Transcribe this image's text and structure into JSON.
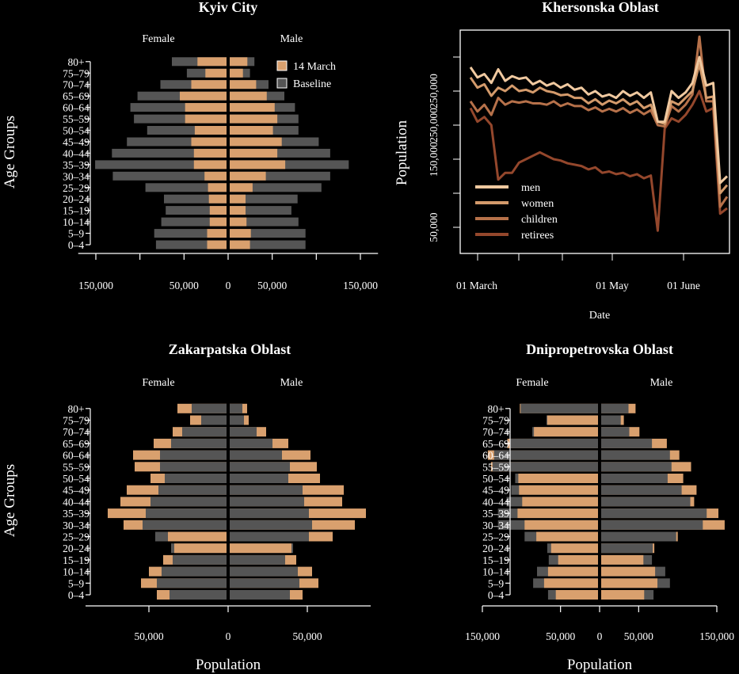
{
  "colors": {
    "background": "#000000",
    "baseline": "#555555",
    "march14": "#d9a06e",
    "text": "#ffffff"
  },
  "chart_data": [
    {
      "type": "bar",
      "subtype": "population-pyramid",
      "title": "Kyiv City",
      "ylabel": "Age Groups",
      "xlabel": "",
      "left_label": "Female",
      "right_label": "Male",
      "legend": {
        "position": "top-right",
        "items": [
          "14 March",
          "Baseline"
        ]
      },
      "x_ticks": [
        150000,
        50000,
        0,
        50000,
        150000
      ],
      "x_tick_labels": [
        "150,000",
        "50,000",
        "0",
        "50,000",
        "150,000"
      ],
      "xlim": [
        -150000,
        150000
      ],
      "categories": [
        "0–4",
        "5–9",
        "10–14",
        "15–19",
        "20–24",
        "25–29",
        "30–34",
        "35–39",
        "40–44",
        "45–49",
        "50–54",
        "55–59",
        "60–64",
        "65–69",
        "70–74",
        "75–79",
        "80+"
      ],
      "series": [
        {
          "name": "Baseline",
          "female": [
            80000,
            82000,
            74000,
            69000,
            71000,
            92000,
            129000,
            149000,
            130000,
            113000,
            90000,
            105000,
            109000,
            101000,
            75000,
            45000,
            62000
          ],
          "male": [
            86000,
            86000,
            78000,
            70000,
            77000,
            104000,
            114000,
            135000,
            114000,
            101000,
            78000,
            78000,
            74000,
            62000,
            44000,
            23000,
            28000
          ]
        },
        {
          "name": "14 March",
          "female": [
            22000,
            22000,
            19000,
            19000,
            20000,
            21000,
            25000,
            37000,
            37000,
            40000,
            36000,
            47000,
            47000,
            53000,
            40000,
            24000,
            33000
          ],
          "male": [
            23000,
            24000,
            19000,
            18000,
            18000,
            26000,
            41000,
            63000,
            54000,
            59000,
            49000,
            54000,
            51000,
            42000,
            30000,
            15000,
            20000
          ]
        }
      ]
    },
    {
      "type": "line",
      "title": "Khersonska Oblast",
      "xlabel": "Date",
      "ylabel": "Population",
      "x_tick_labels": [
        "01 March",
        "01 May",
        "01 June"
      ],
      "y_tick_labels": [
        "50,000",
        "150,000",
        "250,000",
        "250,000"
      ],
      "legend": {
        "position": "bottom-left",
        "items": [
          "men",
          "women",
          "children",
          "retirees"
        ]
      },
      "series_colors": [
        "#f0c9a0",
        "#d39a6b",
        "#b6714a",
        "#94472c"
      ],
      "day_offsets": [
        0,
        3,
        6,
        9,
        12,
        15,
        18,
        21,
        24,
        27,
        30,
        33,
        36,
        39,
        42,
        45,
        48,
        51,
        54,
        57,
        60,
        63,
        66,
        69,
        72,
        75,
        78,
        81,
        84,
        87,
        90,
        93,
        96,
        99,
        102,
        105,
        108,
        111
      ],
      "series": [
        {
          "name": "men",
          "values": [
            285000,
            270000,
            275000,
            262000,
            282000,
            265000,
            272000,
            268000,
            270000,
            260000,
            265000,
            258000,
            262000,
            255000,
            260000,
            252000,
            255000,
            245000,
            250000,
            242000,
            245000,
            240000,
            250000,
            243000,
            248000,
            240000,
            248000,
            205000,
            205000,
            250000,
            240000,
            248000,
            262000,
            300000,
            258000,
            262000,
            115000,
            125000
          ]
        },
        {
          "name": "women",
          "values": [
            270000,
            255000,
            260000,
            243000,
            255000,
            250000,
            258000,
            250000,
            252000,
            248000,
            255000,
            250000,
            248000,
            244000,
            245000,
            240000,
            240000,
            232000,
            238000,
            230000,
            236000,
            232000,
            238000,
            230000,
            235000,
            225000,
            230000,
            205000,
            202000,
            235000,
            230000,
            240000,
            250000,
            290000,
            240000,
            242000,
            100000,
            112000
          ]
        },
        {
          "name": "children",
          "values": [
            235000,
            220000,
            230000,
            215000,
            240000,
            230000,
            235000,
            233000,
            235000,
            232000,
            232000,
            230000,
            235000,
            228000,
            232000,
            228000,
            228000,
            222000,
            226000,
            220000,
            224000,
            220000,
            225000,
            218000,
            223000,
            216000,
            222000,
            200000,
            198000,
            228000,
            220000,
            230000,
            245000,
            330000,
            235000,
            235000,
            80000,
            95000
          ]
        },
        {
          "name": "retirees",
          "values": [
            225000,
            205000,
            212000,
            200000,
            120000,
            130000,
            130000,
            145000,
            150000,
            155000,
            160000,
            155000,
            150000,
            148000,
            144000,
            142000,
            140000,
            135000,
            138000,
            130000,
            132000,
            128000,
            130000,
            125000,
            128000,
            122000,
            126000,
            45000,
            195000,
            210000,
            205000,
            215000,
            230000,
            250000,
            220000,
            225000,
            70000,
            78000
          ]
        }
      ]
    },
    {
      "type": "bar",
      "subtype": "population-pyramid",
      "title": "Zakarpatska Oblast",
      "ylabel": "Age Groups",
      "xlabel": "Population",
      "left_label": "Female",
      "right_label": "Male",
      "x_ticks": [
        50000,
        0,
        50000
      ],
      "x_tick_labels": [
        "50,000",
        "0",
        "50,000"
      ],
      "xlim": [
        -90000,
        90000
      ],
      "categories": [
        "0–4",
        "5–9",
        "10–14",
        "15–19",
        "20–24",
        "25–29",
        "30–34",
        "35–39",
        "40–44",
        "45–49",
        "50–54",
        "55–59",
        "60–64",
        "65–69",
        "70–74",
        "75–79",
        "80+"
      ],
      "series": [
        {
          "name": "Baseline",
          "female": [
            36000,
            44000,
            41000,
            34000,
            35000,
            45000,
            53000,
            51000,
            48000,
            43000,
            39000,
            42000,
            42000,
            35000,
            28000,
            16000,
            22000
          ],
          "male": [
            38000,
            44000,
            43000,
            35000,
            40000,
            50000,
            52000,
            50000,
            47000,
            46000,
            37000,
            38000,
            33000,
            27000,
            17000,
            9000,
            8000
          ]
        },
        {
          "name": "14 March",
          "female": [
            44000,
            54000,
            49000,
            40000,
            33000,
            37000,
            65000,
            75000,
            67000,
            63000,
            48000,
            58000,
            59000,
            46000,
            34000,
            23000,
            31000
          ],
          "male": [
            46000,
            56000,
            52000,
            42000,
            39000,
            65000,
            79000,
            86000,
            71000,
            72000,
            57000,
            55000,
            51000,
            37000,
            23000,
            12000,
            11000
          ]
        }
      ]
    },
    {
      "type": "bar",
      "subtype": "population-pyramid",
      "title": "Dnipropetrovska Oblast",
      "ylabel": "",
      "xlabel": "Population",
      "left_label": "Female",
      "right_label": "Male",
      "x_ticks": [
        150000,
        50000,
        0,
        50000,
        150000
      ],
      "x_tick_labels": [
        "150,000",
        "50,000",
        "0",
        "50,000",
        "150,000"
      ],
      "xlim": [
        -150000,
        150000
      ],
      "categories": [
        "0–4",
        "5–9",
        "10–14",
        "15–19",
        "20–24",
        "25–29",
        "30–34",
        "35–39",
        "40–44",
        "45–49",
        "50–54",
        "55–59",
        "60–64",
        "65–69",
        "70–74",
        "75–79",
        "80+"
      ],
      "series": [
        {
          "name": "Baseline",
          "female": [
            64000,
            83000,
            78000,
            63000,
            65000,
            94000,
            128000,
            128000,
            117000,
            111000,
            106000,
            135000,
            133000,
            113000,
            84000,
            66000,
            99000
          ],
          "male": [
            67000,
            88000,
            82000,
            65000,
            66000,
            96000,
            130000,
            135000,
            114000,
            103000,
            85000,
            90000,
            88000,
            65000,
            36000,
            25000,
            35000
          ]
        },
        {
          "name": "14 March",
          "female": [
            54000,
            69000,
            64000,
            51000,
            60000,
            79000,
            94000,
            103000,
            97000,
            101000,
            102000,
            137000,
            141000,
            116000,
            82000,
            65000,
            100000
          ],
          "male": [
            55000,
            72000,
            69000,
            54000,
            68000,
            98000,
            158000,
            150000,
            119000,
            122000,
            105000,
            115000,
            100000,
            84000,
            49000,
            29000,
            44000
          ]
        }
      ]
    }
  ]
}
